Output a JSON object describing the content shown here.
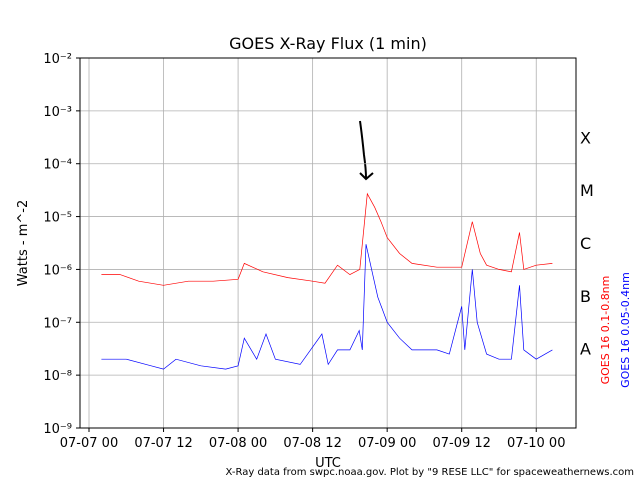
{
  "chart_data": {
    "type": "line",
    "title": "GOES X-Ray Flux (1 min)",
    "x_label": "UTC",
    "y_label": "Watts - m^-2",
    "source": "X-Ray data from swpc.noaa.gov. Plot by \"9 RESE LLC\" for spaceweathernews.com",
    "log_y": true,
    "grid": true,
    "xlim": [
      -1.45,
      78.4
    ],
    "xticks": [
      {
        "value": 0,
        "label": "07-07 00"
      },
      {
        "value": 12,
        "label": "07-07 12"
      },
      {
        "value": 24,
        "label": "07-08 00"
      },
      {
        "value": 36,
        "label": "07-08 12"
      },
      {
        "value": 48,
        "label": "07-09 00"
      },
      {
        "value": 60,
        "label": "07-09 12"
      },
      {
        "value": 72,
        "label": "07-10 00"
      }
    ],
    "ylim": [
      1e-09,
      0.01
    ],
    "yticks": [
      {
        "value": 1e-09,
        "label": "10⁻⁹"
      },
      {
        "value": 1e-08,
        "label": "10⁻⁸"
      },
      {
        "value": 1e-07,
        "label": "10⁻⁷"
      },
      {
        "value": 1e-06,
        "label": "10⁻⁶"
      },
      {
        "value": 1e-05,
        "label": "10⁻⁵"
      },
      {
        "value": 0.0001,
        "label": "10⁻⁴"
      },
      {
        "value": 0.001,
        "label": "10⁻³"
      },
      {
        "value": 0.01,
        "label": "10⁻²"
      }
    ],
    "flare_classes": [
      "X",
      "M",
      "C",
      "B",
      "A"
    ],
    "series": [
      {
        "name": "GOES 16 0.1-0.8nm",
        "color": "#ff0000",
        "x": [
          2,
          5,
          8,
          12,
          16,
          20,
          24,
          25,
          28,
          32,
          36,
          38,
          40,
          42,
          43.6,
          44.8,
          46,
          47,
          48,
          50,
          52,
          56,
          60,
          61.7,
          63,
          64,
          66,
          68,
          69.3,
          70,
          72,
          74.6
        ],
        "values": [
          8e-07,
          8e-07,
          6e-07,
          5e-07,
          6e-07,
          6e-07,
          6.5e-07,
          1.3e-06,
          9e-07,
          7e-07,
          6e-07,
          5.5e-07,
          1.2e-06,
          8e-07,
          1e-06,
          2.7e-05,
          1.5e-05,
          8e-06,
          4e-06,
          2e-06,
          1.3e-06,
          1.1e-06,
          1.1e-06,
          8e-06,
          2e-06,
          1.2e-06,
          1e-06,
          9e-07,
          5e-06,
          1e-06,
          1.2e-06,
          1.3e-06
        ]
      },
      {
        "name": "GOES 16 0.05-0.4nm",
        "color": "#0000ff",
        "x": [
          2,
          6,
          10,
          12,
          14,
          18,
          22,
          24,
          25,
          27,
          28.5,
          30,
          34,
          37.5,
          38.5,
          40,
          42,
          43.5,
          44,
          44.6,
          45.5,
          46.5,
          48,
          50,
          52,
          56,
          58,
          60,
          60.5,
          61.7,
          62.5,
          64,
          66,
          68,
          69.3,
          70,
          72,
          74.6
        ],
        "values": [
          2e-08,
          2e-08,
          1.5e-08,
          1.3e-08,
          2e-08,
          1.5e-08,
          1.3e-08,
          1.5e-08,
          5e-08,
          2e-08,
          6e-08,
          2e-08,
          1.6e-08,
          6e-08,
          1.6e-08,
          3e-08,
          3e-08,
          7e-08,
          3e-08,
          3e-06,
          1e-06,
          3e-07,
          1e-07,
          5e-08,
          3e-08,
          3e-08,
          2.5e-08,
          2e-07,
          3e-08,
          1e-06,
          1e-07,
          2.5e-08,
          2e-08,
          2e-08,
          5e-07,
          3e-08,
          2e-08,
          3e-08
        ]
      }
    ]
  }
}
